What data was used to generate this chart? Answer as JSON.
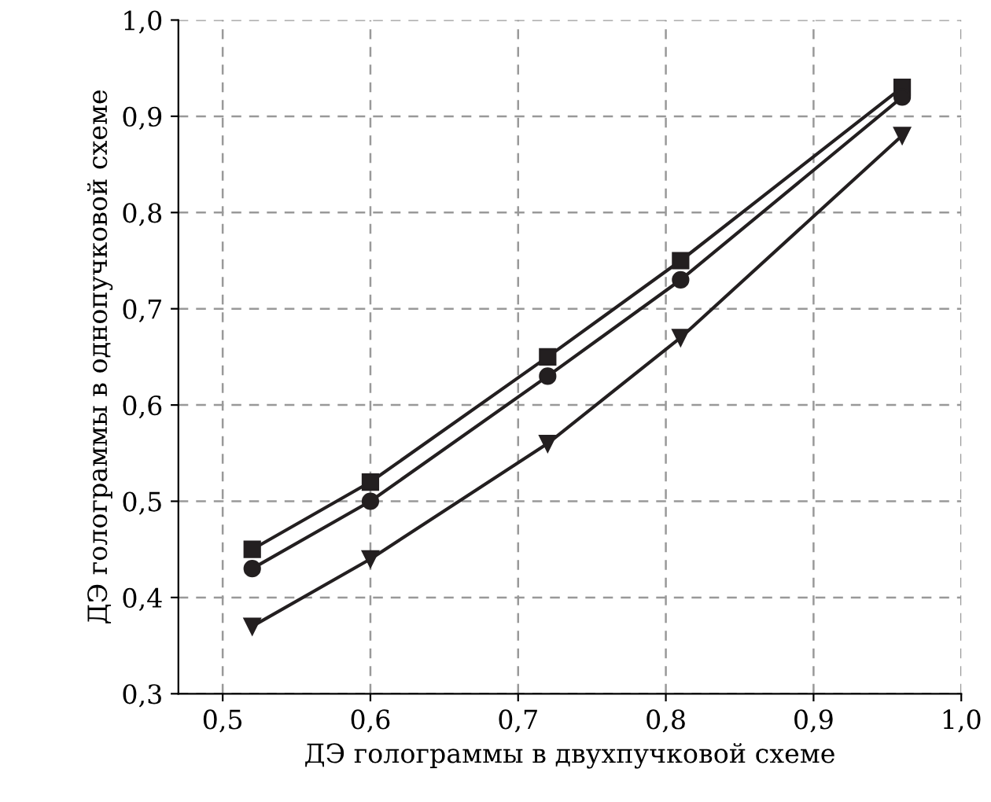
{
  "chart_data": {
    "type": "line",
    "xlabel": "ДЭ голограммы в двухпучковой схеме",
    "ylabel": "ДЭ голограммы в однопучковой схеме",
    "x": [
      0.52,
      0.6,
      0.72,
      0.81,
      0.96
    ],
    "series": [
      {
        "color": "#231f20",
        "marker": "square",
        "values": [
          0.45,
          0.52,
          0.65,
          0.75,
          0.93
        ]
      },
      {
        "color": "#231f20",
        "marker": "circle",
        "values": [
          0.43,
          0.5,
          0.63,
          0.73,
          0.92
        ]
      },
      {
        "color": "#231f20",
        "marker": "triangle",
        "values": [
          0.37,
          0.44,
          0.56,
          0.67,
          0.88
        ]
      }
    ],
    "xlim": [
      0.47,
      1.0
    ],
    "xticks": [
      {
        "value": 0.5,
        "label": "0,5"
      },
      {
        "value": 0.6,
        "label": "0,6"
      },
      {
        "value": 0.7,
        "label": "0,7"
      },
      {
        "value": 0.8,
        "label": "0,8"
      },
      {
        "value": 0.9,
        "label": "0,9"
      },
      {
        "value": 1.0,
        "label": "1,0"
      }
    ],
    "ylim": [
      0.3,
      1.0
    ],
    "yticks": [
      {
        "value": 0.3,
        "label": "0,3"
      },
      {
        "value": 0.4,
        "label": "0,4"
      },
      {
        "value": 0.5,
        "label": "0,5"
      },
      {
        "value": 0.6,
        "label": "0,6"
      },
      {
        "value": 0.7,
        "label": "0,7"
      },
      {
        "value": 0.8,
        "label": "0,8"
      },
      {
        "value": 0.9,
        "label": "0,9"
      },
      {
        "value": 1.0,
        "label": "1,0"
      }
    ],
    "grid": true,
    "line_style": "solid",
    "legend": false
  }
}
